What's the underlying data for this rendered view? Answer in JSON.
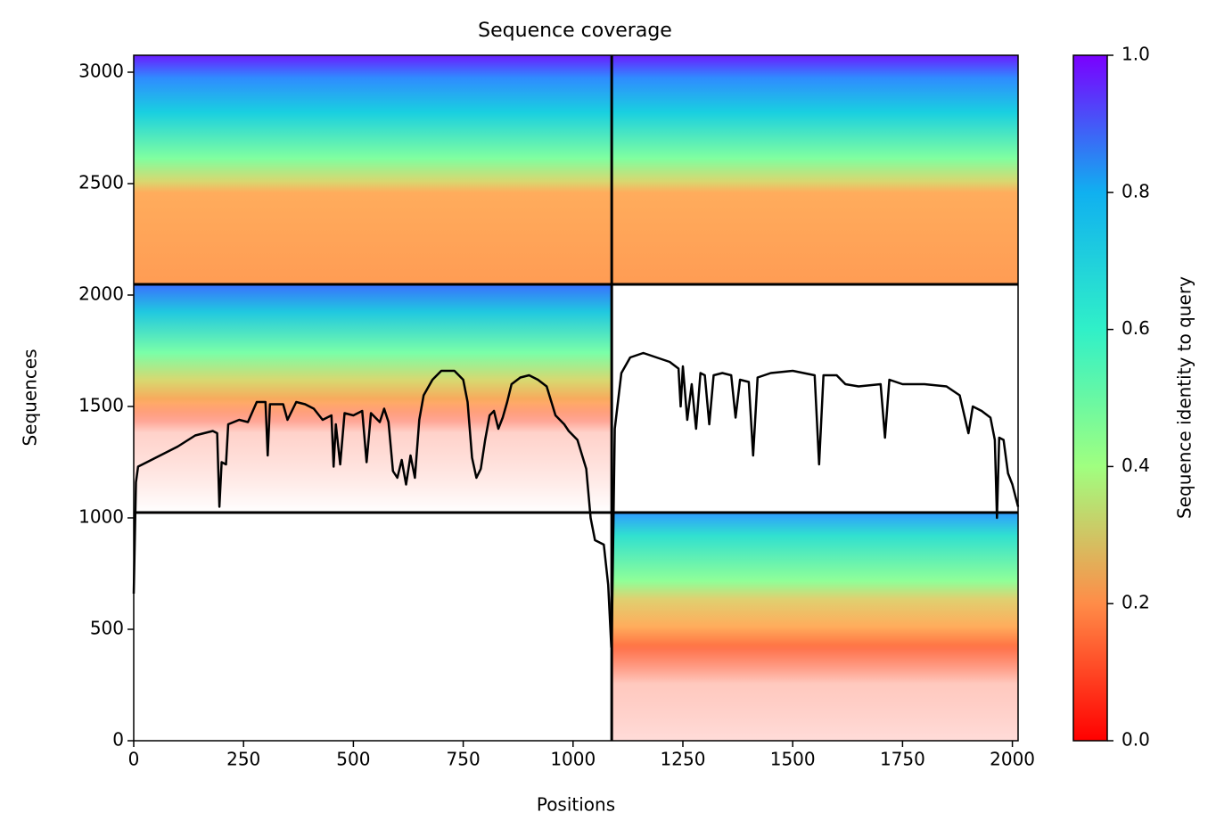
{
  "chart_data": {
    "type": "line",
    "title": "Sequence coverage",
    "xlabel": "Positions",
    "ylabel": "Sequences",
    "xlim": [
      0,
      2013
    ],
    "ylim": [
      0,
      3076
    ],
    "xticks": [
      0,
      250,
      500,
      750,
      1000,
      1250,
      1500,
      1750,
      2000
    ],
    "yticks": [
      0,
      500,
      1000,
      1500,
      2000,
      2500,
      3000
    ],
    "chain_breaks": {
      "x": [
        1088
      ],
      "y": [
        1024,
        2048
      ]
    },
    "colorbar": {
      "label": "Sequence identity to query",
      "lim": [
        0,
        1
      ],
      "ticks": [
        {
          "value": 0,
          "label": "0.0"
        },
        {
          "value": 0.2,
          "label": "0.2"
        },
        {
          "value": 0.4,
          "label": "0.4"
        },
        {
          "value": 0.6,
          "label": "0.6"
        },
        {
          "value": 0.8,
          "label": "0.8"
        },
        {
          "value": 1,
          "label": "1.0"
        }
      ]
    },
    "series": [
      {
        "color": "#000000",
        "x": [
          0,
          5,
          10,
          30,
          60,
          100,
          140,
          180,
          190,
          195,
          200,
          210,
          215,
          240,
          260,
          280,
          300,
          305,
          310,
          340,
          350,
          370,
          390,
          410,
          430,
          450,
          455,
          460,
          470,
          480,
          500,
          520,
          530,
          540,
          560,
          570,
          580,
          590,
          600,
          610,
          620,
          630,
          640,
          650,
          660,
          680,
          700,
          730,
          750,
          760,
          770,
          780,
          790,
          800,
          810,
          820,
          830,
          840,
          850,
          860,
          880,
          900,
          920,
          940,
          960,
          980,
          990,
          1010,
          1030,
          1040,
          1050,
          1070,
          1080,
          1087,
          1088,
          1095,
          1110,
          1130,
          1160,
          1190,
          1220,
          1240,
          1245,
          1250,
          1260,
          1270,
          1280,
          1290,
          1300,
          1310,
          1320,
          1340,
          1360,
          1370,
          1380,
          1400,
          1410,
          1420,
          1450,
          1500,
          1550,
          1560,
          1570,
          1600,
          1620,
          1650,
          1700,
          1710,
          1720,
          1750,
          1800,
          1850,
          1880,
          1900,
          1910,
          1930,
          1950,
          1960,
          1965,
          1970,
          1980,
          1990,
          2000,
          2013
        ],
        "values": [
          660,
          1160,
          1230,
          1250,
          1280,
          1320,
          1370,
          1390,
          1380,
          1050,
          1250,
          1240,
          1420,
          1440,
          1430,
          1520,
          1520,
          1280,
          1510,
          1510,
          1440,
          1520,
          1510,
          1490,
          1440,
          1460,
          1230,
          1420,
          1240,
          1470,
          1460,
          1480,
          1250,
          1470,
          1430,
          1490,
          1430,
          1210,
          1180,
          1260,
          1150,
          1280,
          1180,
          1440,
          1550,
          1620,
          1660,
          1660,
          1620,
          1520,
          1270,
          1180,
          1220,
          1350,
          1460,
          1480,
          1400,
          1450,
          1520,
          1600,
          1630,
          1640,
          1620,
          1590,
          1460,
          1420,
          1390,
          1350,
          1220,
          1000,
          900,
          880,
          700,
          420,
          450,
          1400,
          1650,
          1720,
          1740,
          1720,
          1700,
          1670,
          1500,
          1680,
          1440,
          1600,
          1400,
          1650,
          1640,
          1420,
          1640,
          1650,
          1640,
          1450,
          1620,
          1610,
          1280,
          1630,
          1650,
          1660,
          1640,
          1240,
          1640,
          1640,
          1600,
          1590,
          1600,
          1360,
          1620,
          1600,
          1600,
          1590,
          1550,
          1380,
          1500,
          1480,
          1450,
          1350,
          1000,
          1360,
          1350,
          1200,
          1150,
          1050
        ]
      }
    ]
  }
}
